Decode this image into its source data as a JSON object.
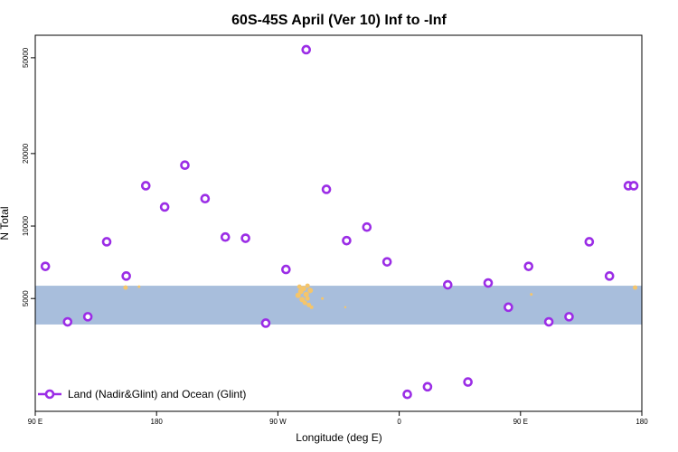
{
  "chart_data": {
    "type": "scatter",
    "title": "60S-45S April (Ver 10)   Inf to -Inf",
    "xlabel": "Longitude (deg E)",
    "ylabel": "N Total",
    "x_ticks": [
      {
        "value": 90,
        "label": "90 E"
      },
      {
        "value": 180,
        "label": "180"
      },
      {
        "value": 270,
        "label": "90 W"
      },
      {
        "value": 360,
        "label": "0"
      },
      {
        "value": 450,
        "label": "90 E"
      },
      {
        "value": 540,
        "label": "180"
      }
    ],
    "y_ticks": [
      5000,
      10000,
      20000,
      50000
    ],
    "xlim": [
      90,
      540
    ],
    "ylim": [
      1700,
      62000
    ],
    "y_scale": "log",
    "ocean_band": {
      "y_min": 3900,
      "y_max": 5650,
      "color": "#a8bedc"
    },
    "land_color": "#f5c56a",
    "series": [
      {
        "name": "Land (Nadir&Glint) and Ocean (Glint)",
        "color": "#9b2de6",
        "x": [
          97.5,
          114,
          129,
          143,
          157.5,
          172,
          186,
          201,
          216,
          231,
          246,
          261,
          276,
          291,
          306,
          321,
          336,
          351,
          366,
          381,
          396,
          411,
          426,
          441,
          456,
          471,
          486,
          501,
          516,
          530,
          534
        ],
        "y": [
          6800,
          4000,
          4200,
          8600,
          6200,
          14700,
          12000,
          17900,
          13000,
          9000,
          8900,
          3950,
          6600,
          54000,
          14200,
          8700,
          9900,
          7100,
          2000,
          2150,
          5700,
          2250,
          5800,
          4600,
          6800,
          4000,
          4200,
          8600,
          6200,
          14700,
          14700
        ]
      }
    ],
    "legend": {
      "position": "bottom-left"
    }
  }
}
